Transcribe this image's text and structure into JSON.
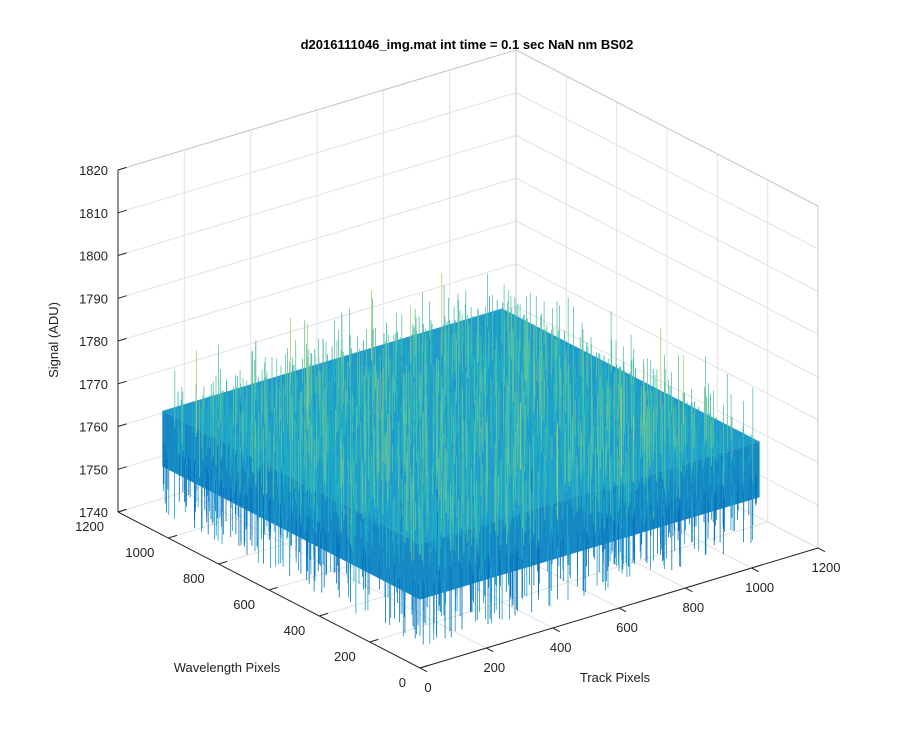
{
  "chart_data": {
    "type": "surface",
    "title": "d2016111046_img.mat int time = 0.1 sec  NaN nm BS02",
    "xlabel": "Track Pixels",
    "ylabel": "Wavelength Pixels",
    "zlabel": "Signal (ADU)",
    "xlim": [
      0,
      1200
    ],
    "ylim": [
      0,
      1200
    ],
    "zlim": [
      1740,
      1820
    ],
    "xticks": [
      "0",
      "200",
      "400",
      "600",
      "800",
      "1000",
      "1200"
    ],
    "yticks": [
      "0",
      "200",
      "400",
      "600",
      "800",
      "1000",
      "1200"
    ],
    "zticks": [
      "1740",
      "1750",
      "1760",
      "1770",
      "1780",
      "1790",
      "1800",
      "1810",
      "1820"
    ],
    "data_extent": {
      "x": [
        0,
        1024
      ],
      "y": [
        0,
        1024
      ]
    },
    "signal_mean": 1769,
    "signal_range": [
      1745,
      1800
    ],
    "colormap": [
      "#0a72bd",
      "#1a9ad0",
      "#21b1c0",
      "#5bc3a0",
      "#b9c770"
    ],
    "grid": true
  }
}
